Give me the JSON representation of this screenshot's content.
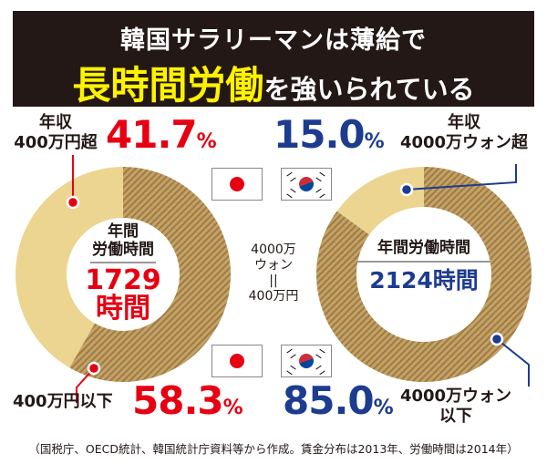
{
  "title": {
    "line1": "韓国サラリーマンは薄給で",
    "line2_highlight": "長時間労働",
    "line2_rest": "を強いられている"
  },
  "chart_data": [
    {
      "type": "pie",
      "country": "japan",
      "center_label": "年間\n労働時間",
      "center_value": "1729\n時間",
      "slices": [
        {
          "label": "年収400万円超",
          "value": 41.7,
          "value_text": "41.7",
          "color": "#ecd591"
        },
        {
          "label": "400万円以下",
          "value": 58.3,
          "value_text": "58.3",
          "color": "#b8955a",
          "pattern": "hatched"
        }
      ],
      "accent": "#e60012"
    },
    {
      "type": "pie",
      "country": "korea",
      "center_label": "年間労働時間",
      "center_value": "2124時間",
      "slices": [
        {
          "label": "年収4000万ウォン超",
          "value": 15.0,
          "value_text": "15.0",
          "color": "#ecd591"
        },
        {
          "label": "4000万ウォン以下",
          "value": 85.0,
          "value_text": "85.0",
          "color": "#b8955a",
          "pattern": "hatched"
        }
      ],
      "accent": "#1d3c8f"
    }
  ],
  "labels": {
    "jp_top_1": "年収",
    "jp_top_2": "400万円超",
    "jp_bottom": "400万円以下",
    "kr_top_1": "年収",
    "kr_top_2": "4000万ウォン超",
    "kr_bottom_1": "4000万ウォン",
    "kr_bottom_2": "以下",
    "percent": "%",
    "jp_center_1": "年間",
    "jp_center_2": "労働時間",
    "jp_value_1": "1729",
    "jp_value_2": "時間",
    "kr_center": "年間労働時間",
    "kr_value": "2124時間"
  },
  "exchange": {
    "line1": "4000万",
    "line2": "ウォン",
    "line3": "||",
    "line4": "400万円"
  },
  "flags": {
    "japan": "japan-flag-icon",
    "korea": "korea-flag-icon"
  },
  "footnote": "（国税庁、OECD統計、韓国統計庁資料等から作成。賃金分布は2013年、労働時間は2014年）"
}
